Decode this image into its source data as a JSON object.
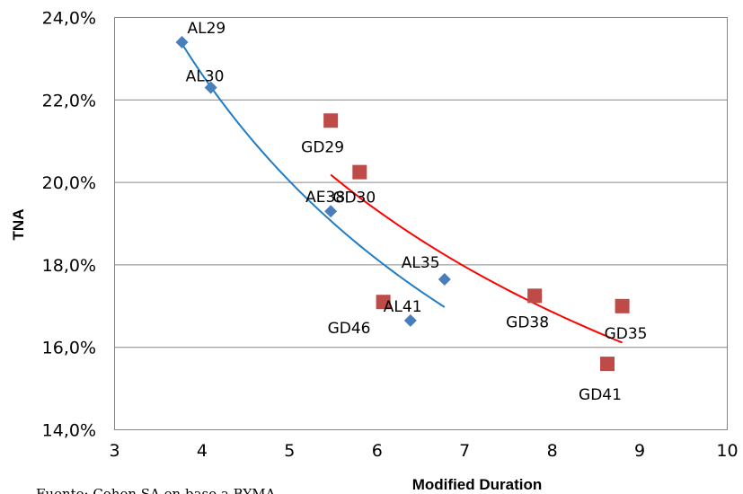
{
  "chart_data": {
    "type": "scatter",
    "title": "",
    "xlabel": "Modified Duration",
    "ylabel": "TNA",
    "xlim": [
      3,
      10
    ],
    "ylim": [
      14,
      24
    ],
    "x_ticks": [
      3,
      4,
      5,
      6,
      7,
      8,
      9,
      10
    ],
    "y_ticks": [
      14,
      16,
      18,
      20,
      22,
      24
    ],
    "x_tick_labels": [
      "3",
      "4",
      "5",
      "6",
      "7",
      "8",
      "9",
      "10"
    ],
    "y_tick_labels": [
      "14,0%",
      "16,0%",
      "18,0%",
      "20,0%",
      "22,0%",
      "24,0%"
    ],
    "grid": "horizontal",
    "legend": "none",
    "series": [
      {
        "color": "#4a7ebb",
        "marker": "diamond",
        "trendline_color": "#1f7cc8",
        "trendline_x_range": [
          3.77,
          6.77
        ],
        "points": [
          {
            "label": "AL29",
            "x": 3.77,
            "y": 23.4
          },
          {
            "label": "AL30",
            "x": 4.1,
            "y": 22.3
          },
          {
            "label": "AE38",
            "x": 5.47,
            "y": 19.3
          },
          {
            "label": "AL35",
            "x": 6.77,
            "y": 17.65
          },
          {
            "label": "AL41",
            "x": 6.38,
            "y": 16.65
          }
        ]
      },
      {
        "color": "#be4b48",
        "marker": "square",
        "trendline_color": "#ff0000",
        "trendline_x_range": [
          5.47,
          8.8
        ],
        "points": [
          {
            "label": "GD29",
            "x": 5.47,
            "y": 21.5
          },
          {
            "label": "GD30",
            "x": 5.8,
            "y": 20.25
          },
          {
            "label": "GD46",
            "x": 6.07,
            "y": 17.1
          },
          {
            "label": "GD38",
            "x": 7.8,
            "y": 17.25
          },
          {
            "label": "GD35",
            "x": 8.8,
            "y": 17.0
          },
          {
            "label": "GD41",
            "x": 8.63,
            "y": 15.6
          }
        ]
      }
    ],
    "source_note": "Fuente: Cohen SA en base a BYMA"
  }
}
